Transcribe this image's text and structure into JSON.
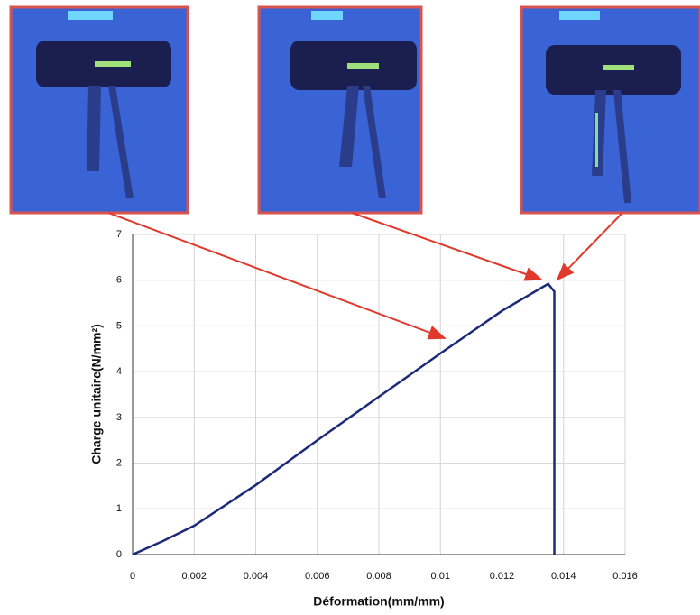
{
  "chart_data": {
    "type": "line",
    "xlabel": "Déformation(mm/mm)",
    "ylabel": "Charge unitaire(N/mm²)",
    "x": [
      0,
      0.001,
      0.002,
      0.004,
      0.006,
      0.008,
      0.01,
      0.012,
      0.0135,
      0.0137,
      0.0137,
      0.0137
    ],
    "values": [
      0,
      0.3,
      0.63,
      1.52,
      2.5,
      3.45,
      4.4,
      5.33,
      5.92,
      5.75,
      4.0,
      0
    ],
    "color": "#1c2a7a",
    "xlim": [
      0,
      0.016
    ],
    "xticks": [
      0,
      0.002,
      0.004,
      0.006,
      0.008,
      0.01,
      0.012,
      0.014,
      0.016
    ],
    "ylim": [
      0,
      7
    ],
    "yticks": [
      0,
      1,
      2,
      3,
      4,
      5,
      6,
      7
    ],
    "grid": true
  }
}
